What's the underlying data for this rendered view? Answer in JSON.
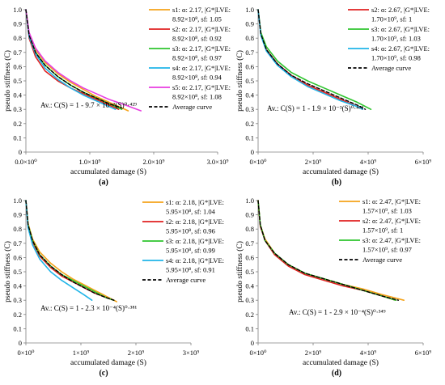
{
  "chart_data": [
    {
      "type": "line",
      "panel_label": "(a)",
      "xlabel": "accumulated damage (S)",
      "ylabel": "pseudo stiffness (C)",
      "xlim": [
        0,
        3000000000
      ],
      "ylim": [
        0,
        1
      ],
      "xticks": [
        "0.0×10⁰",
        "1.0×10⁹",
        "2.0×10⁹",
        "3.0×10⁹"
      ],
      "yticks": [
        "0",
        "0.1",
        "0.2",
        "0.3",
        "0.4",
        "0.5",
        "0.6",
        "0.7",
        "0.8",
        "0.9",
        "1.0"
      ],
      "legend_placement": "top-right",
      "equation": "Av.: C(S) = 1 - 9.7 × 10⁻³(S)⁰·⁴²⁹",
      "series": [
        {
          "name": "s1: α: 2.17, |G*|LVE: 8.92×10⁸, sf: 1.05",
          "color": "#f5a31a",
          "style": "solid",
          "x": [
            0,
            50000000,
            150000000,
            300000000,
            500000000,
            700000000,
            900000000,
            1100000000,
            1300000000,
            1500000000,
            1600000000
          ],
          "y": [
            1.0,
            0.83,
            0.72,
            0.63,
            0.55,
            0.49,
            0.44,
            0.39,
            0.35,
            0.31,
            0.29
          ]
        },
        {
          "name": "s2: α: 2.17, |G*|LVE: 8.92×10⁸, sf: 0.92",
          "color": "#e02020",
          "style": "solid",
          "x": [
            0,
            50000000,
            150000000,
            300000000,
            500000000,
            700000000,
            900000000,
            1100000000,
            1300000000,
            1450000000
          ],
          "y": [
            1.0,
            0.8,
            0.67,
            0.57,
            0.5,
            0.45,
            0.41,
            0.37,
            0.33,
            0.3
          ]
        },
        {
          "name": "s3: α: 2.17, |G*|LVE: 8.92×10⁸, sf: 0.97",
          "color": "#2ec52e",
          "style": "solid",
          "x": [
            0,
            50000000,
            150000000,
            300000000,
            500000000,
            700000000,
            900000000,
            1100000000,
            1300000000,
            1500000000
          ],
          "y": [
            1.0,
            0.82,
            0.7,
            0.61,
            0.53,
            0.47,
            0.42,
            0.38,
            0.34,
            0.3
          ]
        },
        {
          "name": "s4: α: 2.17, |G*|LVE: 8.92×10⁸, sf: 0.94",
          "color": "#21b5e8",
          "style": "solid",
          "x": [
            0,
            50000000,
            150000000,
            300000000,
            500000000,
            700000000,
            900000000,
            1100000000,
            1300000000,
            1400000000
          ],
          "y": [
            1.0,
            0.81,
            0.69,
            0.59,
            0.51,
            0.45,
            0.4,
            0.36,
            0.32,
            0.3
          ]
        },
        {
          "name": "s5: α: 2.17, |G*|LVE: 8.92×10⁸, sf: 1.08",
          "color": "#e83de0",
          "style": "solid",
          "x": [
            0,
            50000000,
            150000000,
            300000000,
            500000000,
            700000000,
            900000000,
            1100000000,
            1300000000,
            1500000000,
            1800000000
          ],
          "y": [
            1.0,
            0.84,
            0.73,
            0.64,
            0.56,
            0.5,
            0.45,
            0.41,
            0.37,
            0.34,
            0.29
          ]
        },
        {
          "name": "Average curve",
          "color": "#000000",
          "style": "dashed",
          "x": [
            0,
            50000000,
            150000000,
            300000000,
            500000000,
            700000000,
            900000000,
            1100000000,
            1300000000,
            1500000000
          ],
          "y": [
            1.0,
            0.82,
            0.7,
            0.61,
            0.53,
            0.47,
            0.42,
            0.38,
            0.34,
            0.31
          ]
        }
      ]
    },
    {
      "type": "line",
      "panel_label": "(b)",
      "xlabel": "accumulated damage (S)",
      "ylabel": "pseudo stiffness (C)",
      "xlim": [
        0,
        6000000000
      ],
      "ylim": [
        0,
        1
      ],
      "xticks": [
        "0×10⁰",
        "2×10⁹",
        "4×10⁹",
        "6×10⁹"
      ],
      "yticks": [
        "0",
        "0.1",
        "0.2",
        "0.3",
        "0.4",
        "0.5",
        "0.6",
        "0.7",
        "0.8",
        "0.9",
        "1.0"
      ],
      "legend_placement": "top-right",
      "equation": "Av.: C(S) = 1 - 1.9 × 10⁻³(S)⁰·⁴⁷³",
      "series": [
        {
          "name": "s2: α: 2.67, |G*|LVE: 1.70×10⁹, sf: 1",
          "color": "#e02020",
          "style": "solid",
          "x": [
            0,
            100000000,
            300000000,
            700000000,
            1200000000,
            1800000000,
            2400000000,
            3000000000,
            3600000000,
            3800000000
          ],
          "y": [
            1.0,
            0.83,
            0.72,
            0.62,
            0.54,
            0.47,
            0.42,
            0.37,
            0.32,
            0.3
          ]
        },
        {
          "name": "s3: α: 2.67, |G*|LVE: 1.70×10⁹, sf: 1.03",
          "color": "#2ec52e",
          "style": "solid",
          "x": [
            0,
            100000000,
            300000000,
            700000000,
            1200000000,
            1800000000,
            2400000000,
            3000000000,
            3600000000,
            4100000000
          ],
          "y": [
            1.0,
            0.84,
            0.74,
            0.64,
            0.56,
            0.5,
            0.45,
            0.4,
            0.35,
            0.3
          ]
        },
        {
          "name": "s4: α: 2.67, |G*|LVE: 1.70×10⁹, sf: 0.98",
          "color": "#21b5e8",
          "style": "solid",
          "x": [
            0,
            100000000,
            300000000,
            700000000,
            1200000000,
            1800000000,
            2400000000,
            3000000000,
            3600000000,
            3800000000
          ],
          "y": [
            1.0,
            0.82,
            0.71,
            0.61,
            0.53,
            0.46,
            0.41,
            0.36,
            0.32,
            0.3
          ]
        },
        {
          "name": "Average curve",
          "color": "#000000",
          "style": "dashed",
          "x": [
            0,
            100000000,
            300000000,
            700000000,
            1200000000,
            1800000000,
            2400000000,
            3000000000,
            3600000000,
            3900000000
          ],
          "y": [
            1.0,
            0.83,
            0.72,
            0.62,
            0.54,
            0.48,
            0.43,
            0.38,
            0.33,
            0.3
          ]
        }
      ]
    },
    {
      "type": "line",
      "panel_label": "(c)",
      "xlabel": "accumulated damage (S)",
      "ylabel": "pseudo stiffness (C)",
      "xlim": [
        0,
        3000000000
      ],
      "ylim": [
        0,
        1
      ],
      "xticks": [
        "0×10⁰",
        "1×10⁹",
        "2×10⁹",
        "3×10⁹"
      ],
      "yticks": [
        "0",
        "0.1",
        "0.2",
        "0.3",
        "0.4",
        "0.5",
        "0.6",
        "0.7",
        "0.8",
        "0.9",
        "1.0"
      ],
      "legend_placement": "top-right",
      "equation": "Av.: C(S) = 1 - 2.3 × 10⁻⁴(S)⁰·³⁸¹",
      "series": [
        {
          "name": "s1: α: 2.18, |G*|LVE: 5.95×10⁸, sf: 1.04",
          "color": "#f5a31a",
          "style": "solid",
          "x": [
            0,
            40000000,
            120000000,
            250000000,
            450000000,
            650000000,
            850000000,
            1050000000,
            1250000000,
            1450000000,
            1650000000
          ],
          "y": [
            1.0,
            0.84,
            0.73,
            0.64,
            0.56,
            0.5,
            0.45,
            0.41,
            0.37,
            0.33,
            0.29
          ]
        },
        {
          "name": "s2: α: 2.18, |G*|LVE: 5.95×10⁸, sf: 0.96",
          "color": "#e02020",
          "style": "solid",
          "x": [
            0,
            40000000,
            120000000,
            250000000,
            450000000,
            650000000,
            850000000,
            1050000000,
            1250000000,
            1450000000,
            1600000000
          ],
          "y": [
            1.0,
            0.82,
            0.71,
            0.61,
            0.53,
            0.47,
            0.43,
            0.39,
            0.35,
            0.32,
            0.3
          ]
        },
        {
          "name": "s3: α: 2.18, |G*|LVE: 5.95×10⁸, sf: 0.99",
          "color": "#2ec52e",
          "style": "solid",
          "x": [
            0,
            40000000,
            120000000,
            250000000,
            450000000,
            650000000,
            850000000,
            1050000000,
            1250000000,
            1450000000,
            1600000000
          ],
          "y": [
            1.0,
            0.83,
            0.72,
            0.62,
            0.54,
            0.48,
            0.44,
            0.4,
            0.36,
            0.32,
            0.3
          ]
        },
        {
          "name": "s4: α: 2.18, |G*|LVE: 5.95×10⁸, sf: 0.91",
          "color": "#21b5e8",
          "style": "solid",
          "x": [
            0,
            40000000,
            120000000,
            250000000,
            450000000,
            650000000,
            850000000,
            1050000000,
            1200000000
          ],
          "y": [
            1.0,
            0.81,
            0.69,
            0.59,
            0.5,
            0.44,
            0.39,
            0.34,
            0.3
          ]
        },
        {
          "name": "Average curve",
          "color": "#000000",
          "style": "dashed",
          "x": [
            0,
            40000000,
            120000000,
            250000000,
            450000000,
            650000000,
            850000000,
            1050000000,
            1250000000,
            1450000000,
            1600000000
          ],
          "y": [
            1.0,
            0.83,
            0.72,
            0.62,
            0.54,
            0.48,
            0.43,
            0.39,
            0.35,
            0.32,
            0.3
          ]
        }
      ]
    },
    {
      "type": "line",
      "panel_label": "(d)",
      "xlabel": "accumulated damage (S)",
      "ylabel": "pseudo stiffness (C)",
      "xlim": [
        0,
        6000000000
      ],
      "ylim": [
        0,
        1
      ],
      "xticks": [
        "0×10⁰",
        "2×10⁹",
        "4×10⁹",
        "6×10⁹"
      ],
      "yticks": [
        "0",
        "0.1",
        "0.2",
        "0.3",
        "0.4",
        "0.5",
        "0.6",
        "0.7",
        "0.8",
        "0.9",
        "1.0"
      ],
      "legend_placement": "top-right",
      "equation": "Av.: C(S) = 1 - 2.9 × 10⁻⁴(S)⁰·³⁴⁹",
      "series": [
        {
          "name": "s1: α: 2.47, |G*|LVE: 1.57×10⁹, sf: 1.03",
          "color": "#f5a31a",
          "style": "solid",
          "x": [
            0,
            80000000,
            250000000,
            600000000,
            1100000000,
            1700000000,
            2400000000,
            3100000000,
            3800000000,
            4500000000,
            5300000000
          ],
          "y": [
            1.0,
            0.83,
            0.73,
            0.63,
            0.55,
            0.49,
            0.45,
            0.41,
            0.38,
            0.34,
            0.3
          ]
        },
        {
          "name": "s2: α: 2.47, |G*|LVE: 1.57×10⁹, sf: 1",
          "color": "#e02020",
          "style": "solid",
          "x": [
            0,
            80000000,
            250000000,
            600000000,
            1100000000,
            1700000000,
            2400000000,
            3100000000,
            3800000000,
            4500000000,
            5000000000
          ],
          "y": [
            1.0,
            0.82,
            0.72,
            0.62,
            0.54,
            0.48,
            0.44,
            0.4,
            0.37,
            0.33,
            0.3
          ]
        },
        {
          "name": "s3: α: 2.47, |G*|LVE: 1.57×10⁹, sf: 0.97",
          "color": "#2ec52e",
          "style": "solid",
          "x": [
            0,
            80000000,
            250000000,
            600000000,
            1100000000,
            1700000000,
            2400000000,
            3100000000,
            3800000000,
            4500000000,
            5000000000
          ],
          "y": [
            1.0,
            0.83,
            0.72,
            0.63,
            0.55,
            0.49,
            0.45,
            0.41,
            0.37,
            0.33,
            0.3
          ]
        },
        {
          "name": "Average curve",
          "color": "#000000",
          "style": "dashed",
          "x": [
            0,
            80000000,
            250000000,
            600000000,
            1100000000,
            1700000000,
            2400000000,
            3100000000,
            3800000000,
            4500000000,
            5100000000
          ],
          "y": [
            1.0,
            0.83,
            0.72,
            0.63,
            0.55,
            0.49,
            0.45,
            0.41,
            0.37,
            0.33,
            0.3
          ]
        }
      ]
    }
  ]
}
